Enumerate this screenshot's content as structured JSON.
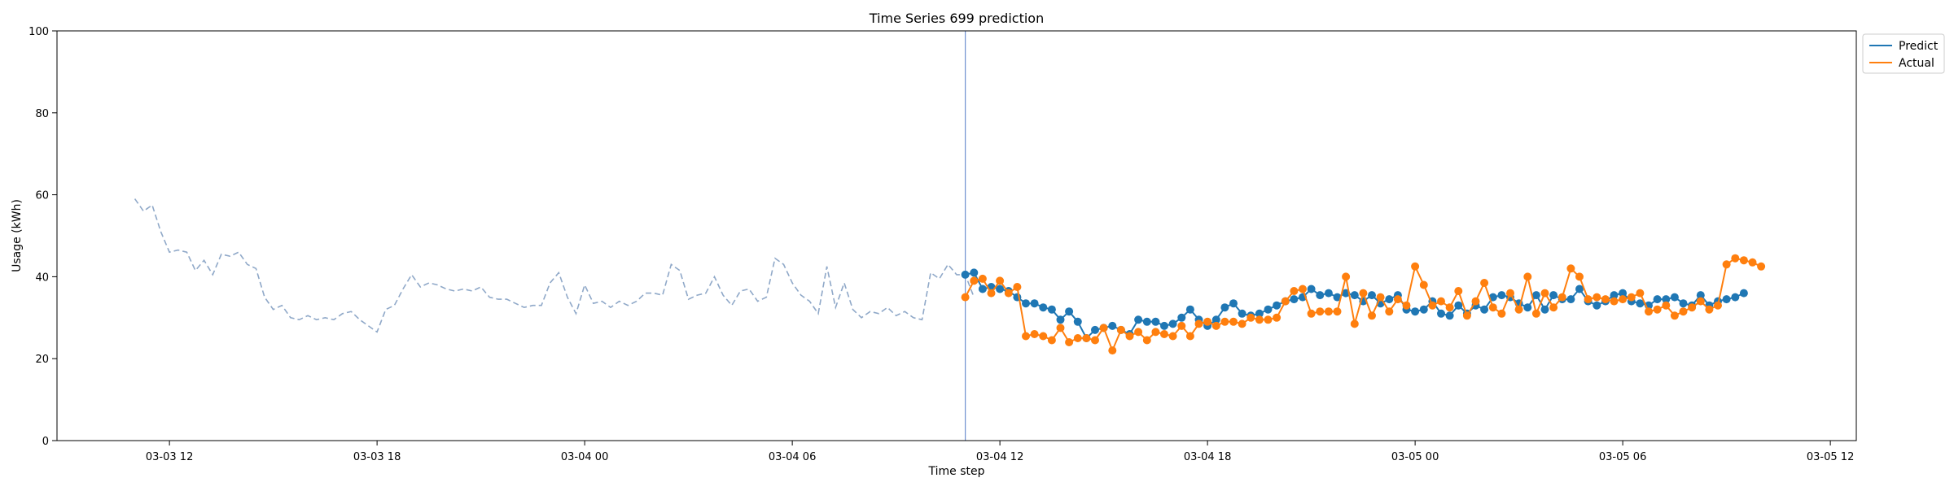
{
  "chart_data": {
    "type": "line",
    "title": "Time Series 699 prediction",
    "xlabel": "Time step",
    "ylabel": "Usage (kWh)",
    "ylim": [
      0,
      100
    ],
    "xlim": [
      "2024-03-03 08:45",
      "2024-03-05 12:45"
    ],
    "x_ticks": [
      {
        "t": "2024-03-03 12:00",
        "label": "03-03 12"
      },
      {
        "t": "2024-03-03 18:00",
        "label": "03-03 18"
      },
      {
        "t": "2024-03-04 00:00",
        "label": "03-04 00"
      },
      {
        "t": "2024-03-04 06:00",
        "label": "03-04 06"
      },
      {
        "t": "2024-03-04 12:00",
        "label": "03-04 12"
      },
      {
        "t": "2024-03-04 18:00",
        "label": "03-04 18"
      },
      {
        "t": "2024-03-05 00:00",
        "label": "03-05 00"
      },
      {
        "t": "2024-03-05 06:00",
        "label": "03-05 06"
      },
      {
        "t": "2024-03-05 12:00",
        "label": "03-05 12"
      }
    ],
    "y_ticks": [
      0,
      20,
      40,
      60,
      80,
      100
    ],
    "grid": false,
    "legend_position": "outside-top-right",
    "forecast_start": "2024-03-04 11:00",
    "series": [
      {
        "color": "#8fa8c8",
        "style": "dashed",
        "start": "2024-03-03 11:00",
        "step_minutes": 15,
        "values": [
          59,
          56,
          57.5,
          51,
          46,
          46.5,
          46,
          41.5,
          44,
          40.5,
          45.5,
          45,
          46,
          43,
          42,
          35,
          32,
          33,
          30,
          29.5,
          30.5,
          29.5,
          30,
          29.5,
          31,
          31.5,
          29.5,
          28,
          26.5,
          32,
          33,
          37,
          40.5,
          37.5,
          38.5,
          38,
          37,
          36.5,
          37,
          36.5,
          37.5,
          35,
          34.5,
          34.5,
          33.5,
          32.5,
          33,
          33,
          38.5,
          41,
          35,
          31,
          38,
          33.5,
          34,
          32.5,
          34,
          33,
          34,
          36,
          36,
          35.5,
          43,
          41.5,
          34.5,
          35.5,
          36,
          40,
          35.5,
          33,
          36.5,
          37,
          34,
          35,
          44.5,
          43,
          38.5,
          35.5,
          34,
          31,
          42.5,
          32.5,
          38.5,
          32,
          30,
          31.5,
          31,
          32.5,
          30.5,
          31.5,
          30,
          29.5,
          41,
          39.5,
          43,
          40.5,
          40.5,
          35
        ]
      },
      {
        "name": "Predict",
        "color": "#1f77b4",
        "style": "solid",
        "markers": true,
        "start": "2024-03-04 11:00",
        "step_minutes": 15,
        "values": [
          40.5,
          41,
          37,
          37.5,
          37,
          36.5,
          35,
          33.5,
          33.5,
          32.5,
          32,
          29.5,
          31.5,
          29,
          25,
          27,
          27.5,
          28,
          27,
          26,
          29.5,
          29,
          29,
          28,
          28.5,
          30,
          32,
          29.5,
          28,
          29.5,
          32.5,
          33.5,
          31,
          30.5,
          31,
          32,
          33,
          34,
          34.5,
          35,
          37,
          35.5,
          36,
          35,
          36,
          35.5,
          34,
          35.5,
          33.5,
          34.5,
          35.5,
          32,
          31.5,
          32,
          34,
          31,
          30.5,
          33,
          31,
          33,
          32,
          35,
          35.5,
          35,
          33.5,
          32.5,
          35.5,
          32,
          35.5,
          34.5,
          34.5,
          37,
          34,
          33,
          34,
          35.5,
          36,
          34,
          33.5,
          33,
          34.5,
          34.5,
          35,
          33.5,
          33,
          35.5,
          33,
          34,
          34.5,
          35,
          36
        ]
      },
      {
        "name": "Actual",
        "color": "#ff7f0e",
        "style": "solid",
        "markers": true,
        "start": "2024-03-04 11:00",
        "step_minutes": 15,
        "values": [
          35,
          39,
          39.5,
          36,
          39,
          36,
          37.5,
          25.5,
          26,
          25.5,
          24.5,
          27.5,
          24,
          25,
          25,
          24.5,
          27.5,
          22,
          27,
          25.5,
          26.5,
          24.5,
          26.5,
          26,
          25.5,
          28,
          25.5,
          28.5,
          29,
          28,
          29,
          29,
          28.5,
          30,
          29.5,
          29.5,
          30,
          34,
          36.5,
          37,
          31,
          31.5,
          31.5,
          31.5,
          40,
          28.5,
          36,
          30.5,
          35,
          31.5,
          34.5,
          33,
          42.5,
          38,
          33,
          34,
          32.5,
          36.5,
          30.5,
          34,
          38.5,
          32.5,
          31,
          36,
          32,
          40,
          31,
          36,
          32.5,
          35,
          42,
          40,
          34.5,
          35,
          34.5,
          34,
          34.5,
          35,
          36,
          31.5,
          32,
          33,
          30.5,
          31.5,
          32.5,
          34,
          32,
          33,
          43,
          44.5,
          44,
          43.5,
          42.5
        ]
      }
    ]
  }
}
